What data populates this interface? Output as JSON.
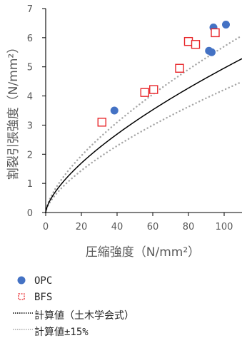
{
  "chart_data": {
    "type": "scatter",
    "xlabel": "圧縮強度（N/mm²）",
    "ylabel": "割裂引張強度（N/mm²）",
    "xlim": [
      0,
      110
    ],
    "ylim": [
      0,
      7
    ],
    "xticks": [
      "0",
      "20",
      "40",
      "60",
      "80",
      "100"
    ],
    "yticks": [
      "0",
      "1",
      "2",
      "3",
      "4",
      "5",
      "6",
      "7"
    ],
    "grid": false,
    "series": [
      {
        "name": "OPC",
        "marker": "filled-circle",
        "color": "#4472c4",
        "points": [
          [
            38.5,
            3.5
          ],
          [
            91.5,
            5.55
          ],
          [
            93,
            5.5
          ],
          [
            94,
            6.35
          ],
          [
            101,
            6.45
          ]
        ]
      },
      {
        "name": "BFS",
        "marker": "open-square",
        "color": "#e8262a",
        "points": [
          [
            31.5,
            3.1
          ],
          [
            55.5,
            4.12
          ],
          [
            60.5,
            4.22
          ],
          [
            75,
            4.95
          ],
          [
            80,
            5.87
          ],
          [
            84,
            5.77
          ],
          [
            95,
            6.17
          ]
        ]
      },
      {
        "name": "計算値（土木学会式）",
        "type": "line",
        "style": "solid",
        "color": "#000000",
        "formula": "0.23*fc^(2/3)"
      },
      {
        "name": "計算値±15%",
        "type": "line",
        "style": "dotted",
        "color": "#a6a6a6",
        "formula": "0.23*fc^(2/3)*(1±0.15)"
      }
    ]
  }
}
